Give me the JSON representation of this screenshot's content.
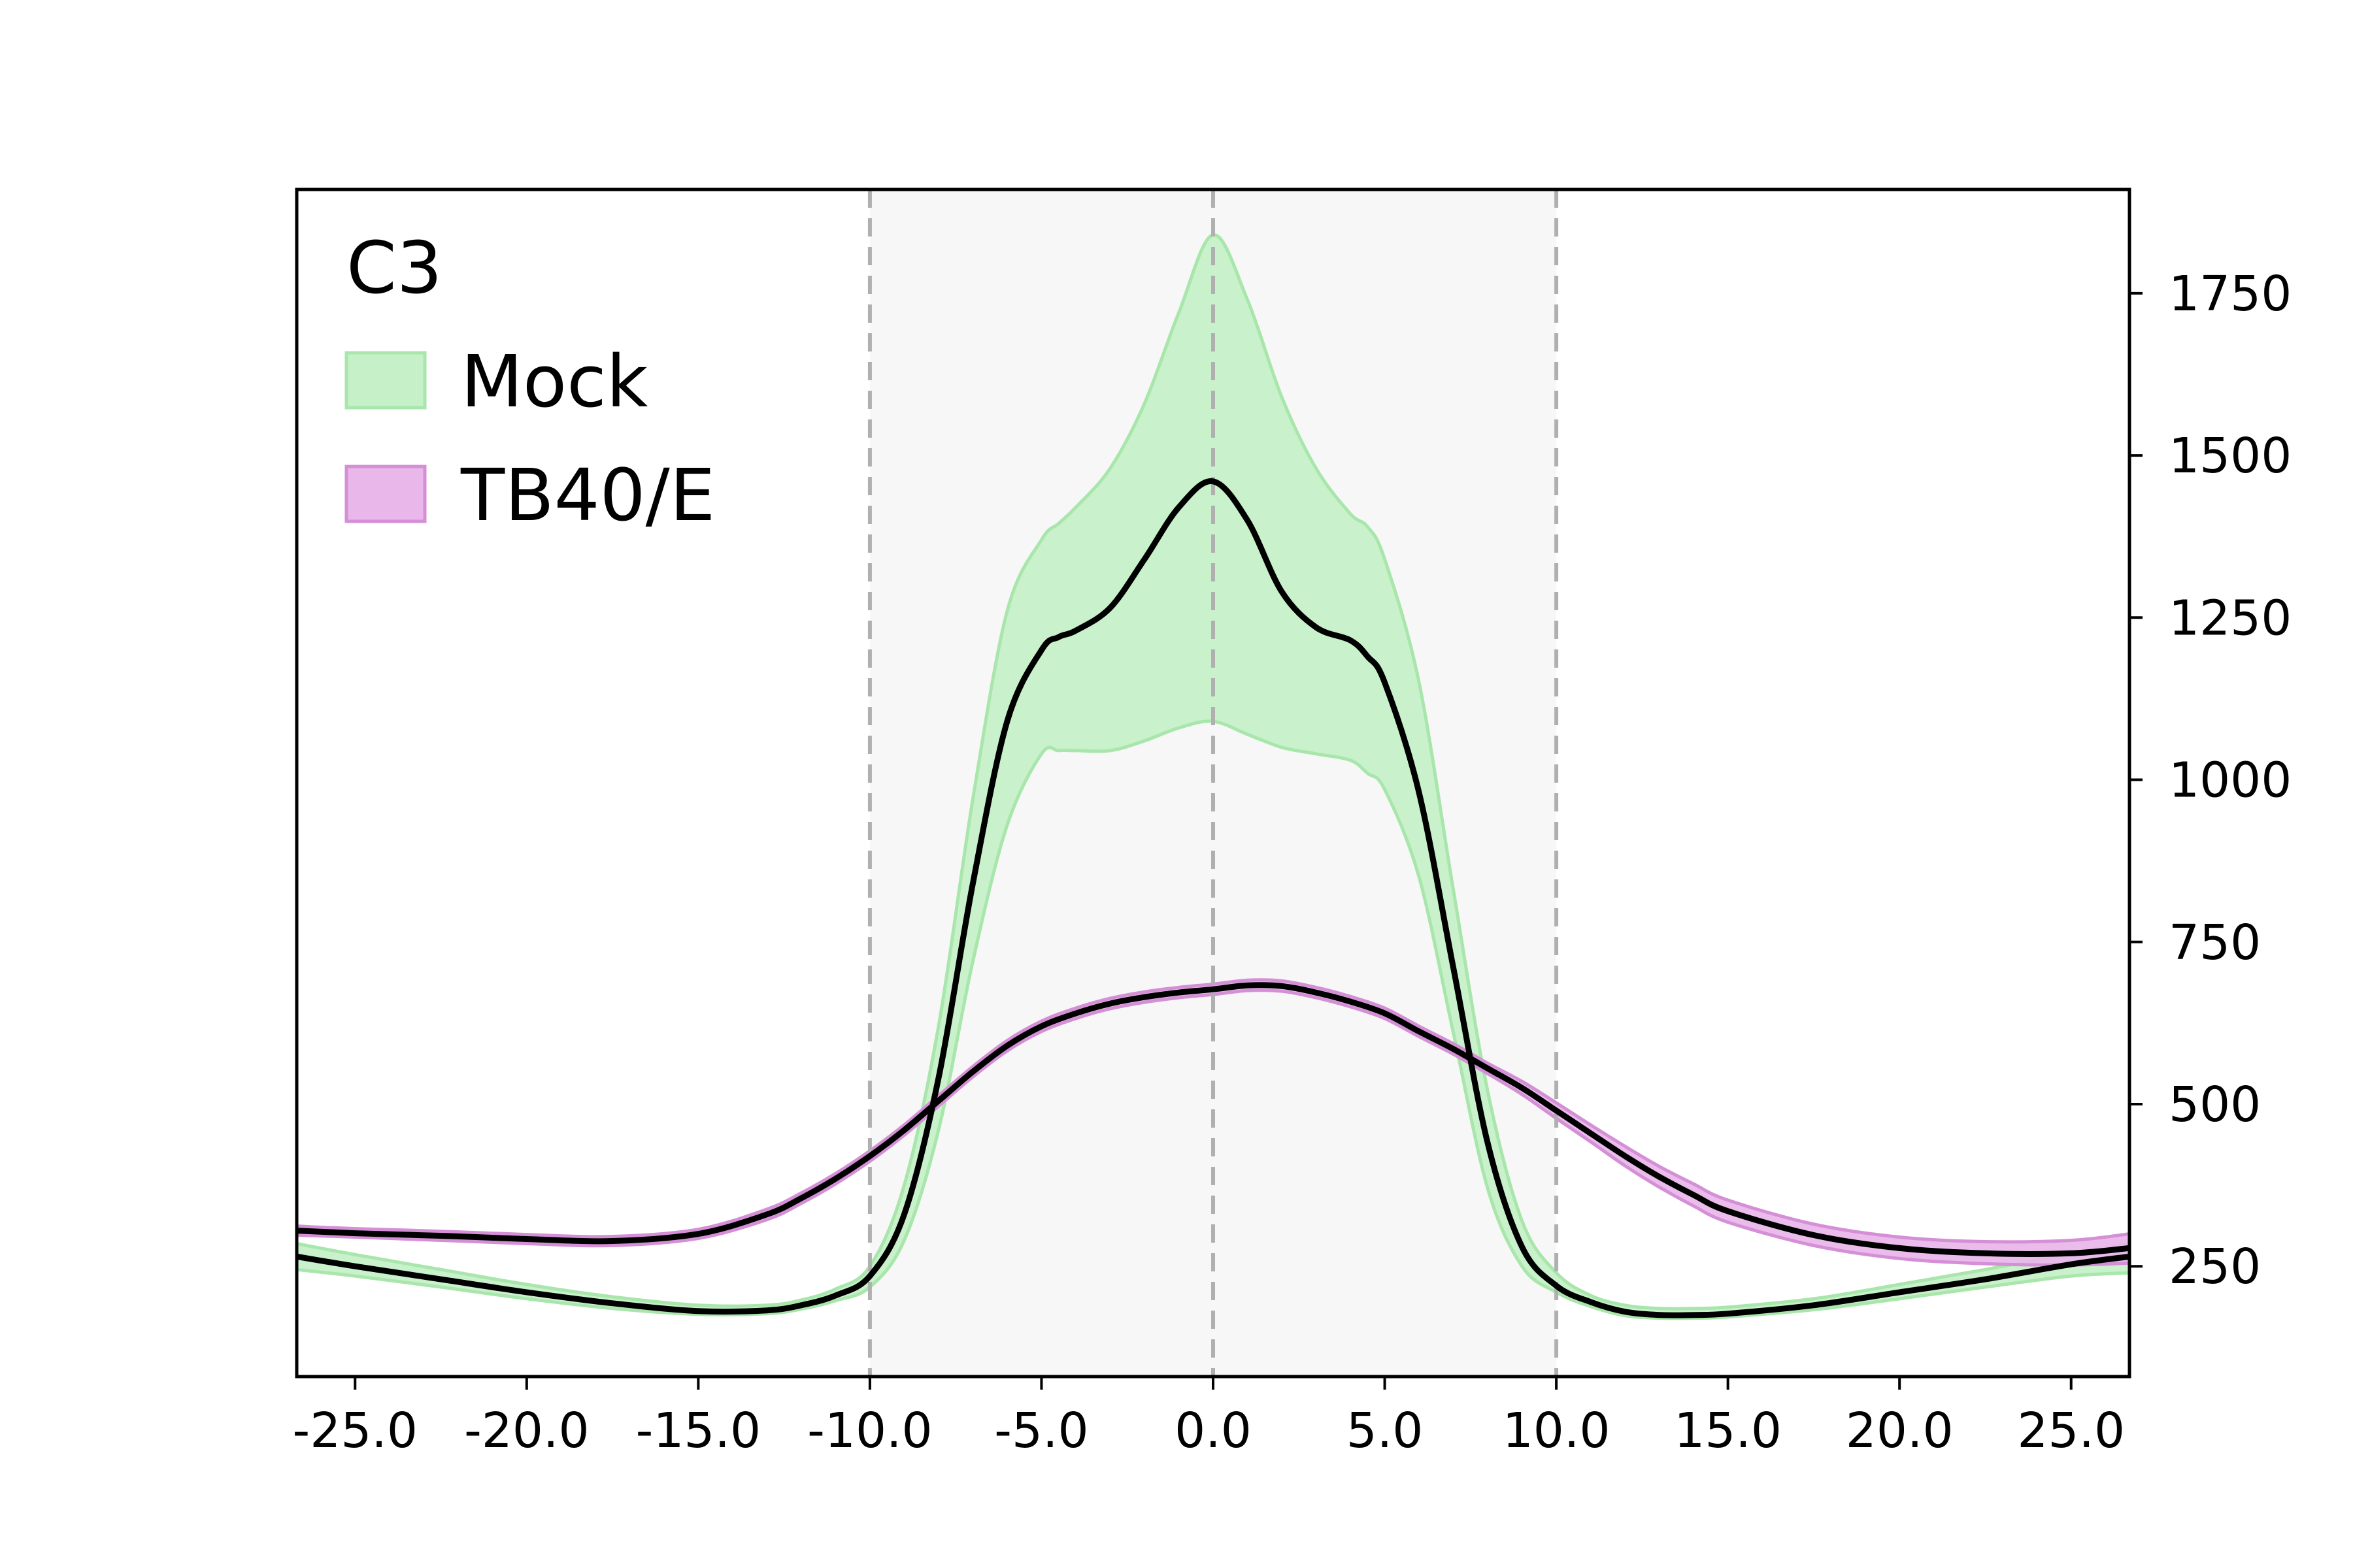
{
  "chart_data": {
    "type": "area",
    "title": "",
    "xlabel": "",
    "ylabel": "",
    "xlim": [
      -26.7,
      26.7
    ],
    "ylim": [
      80,
      1910
    ],
    "y_axis_side": "right",
    "x_ticks": [
      -25,
      -20,
      -15,
      -10,
      -5,
      0,
      5,
      10,
      15,
      20,
      25
    ],
    "x_tick_labels": [
      "-25.0",
      "-20.0",
      "-15.0",
      "-10.0",
      "-5.0",
      "0.0",
      "5.0",
      "10.0",
      "15.0",
      "20.0",
      "25.0"
    ],
    "y_ticks": [
      250,
      500,
      750,
      1000,
      1250,
      1500,
      1750
    ],
    "y_tick_labels": [
      "250",
      "500",
      "750",
      "1000",
      "1250",
      "1500",
      "1750"
    ],
    "vlines": [
      -10,
      0,
      10
    ],
    "shaded_region": [
      -10,
      10
    ],
    "legend_title": "C3",
    "legend_position": "top-left",
    "colors": {
      "shade": "#f7f7f7",
      "vline": "#b0b0b0",
      "mean_line": "#000000"
    },
    "series": [
      {
        "name": "Mock",
        "fill": "#c6f0c8",
        "edge": "#a8e6ab",
        "x": [
          -26.7,
          -25,
          -22.5,
          -20,
          -17.5,
          -15,
          -13,
          -12,
          -11,
          -10,
          -9,
          -8,
          -7,
          -6,
          -5,
          -4.5,
          -4,
          -3,
          -2,
          -1,
          0,
          1,
          2,
          3,
          4,
          4.5,
          5,
          6,
          7,
          8,
          9,
          10,
          11,
          12,
          13,
          14,
          15,
          17.5,
          20,
          22.5,
          25,
          26.7
        ],
        "mean": [
          265,
          250,
          230,
          210,
          193,
          181,
          182,
          190,
          205,
          235,
          330,
          540,
          840,
          1090,
          1200,
          1220,
          1230,
          1265,
          1340,
          1420,
          1460,
          1400,
          1290,
          1235,
          1215,
          1190,
          1150,
          980,
          710,
          440,
          280,
          220,
          195,
          180,
          175,
          175,
          177,
          190,
          210,
          230,
          253,
          265
        ],
        "lower": [
          245,
          235,
          218,
          200,
          185,
          176,
          177,
          184,
          197,
          218,
          290,
          460,
          720,
          930,
          1040,
          1045,
          1045,
          1045,
          1060,
          1080,
          1090,
          1070,
          1050,
          1040,
          1030,
          1010,
          985,
          850,
          610,
          370,
          250,
          210,
          188,
          174,
          170,
          170,
          172,
          183,
          200,
          218,
          235,
          240
        ],
        "upper": [
          285,
          268,
          245,
          222,
          203,
          190,
          190,
          198,
          215,
          250,
          375,
          620,
          970,
          1260,
          1370,
          1395,
          1420,
          1480,
          1580,
          1720,
          1840,
          1740,
          1590,
          1480,
          1410,
          1390,
          1340,
          1150,
          830,
          520,
          320,
          240,
          205,
          190,
          185,
          185,
          187,
          200,
          222,
          245,
          270,
          285
        ]
      },
      {
        "name": "TB40/E",
        "fill": "#e9b7ea",
        "edge": "#d48fd6",
        "x": [
          -26.7,
          -25,
          -22.5,
          -20,
          -17.5,
          -15,
          -13,
          -12,
          -11,
          -10,
          -9,
          -8,
          -7,
          -6,
          -5,
          -4,
          -3,
          -2,
          -1,
          0,
          1,
          2,
          3,
          4,
          5,
          6,
          7,
          8,
          9,
          10,
          11,
          12,
          13,
          14,
          15,
          17.5,
          20,
          22.5,
          25,
          26.7
        ],
        "mean": [
          305,
          301,
          297,
          292,
          289,
          300,
          330,
          355,
          385,
          420,
          460,
          505,
          550,
          590,
          620,
          640,
          655,
          665,
          672,
          677,
          683,
          682,
          672,
          658,
          640,
          612,
          585,
          555,
          525,
          490,
          455,
          420,
          388,
          360,
          335,
          298,
          278,
          270,
          270,
          278
        ],
        "lower": [
          298,
          295,
          290,
          285,
          282,
          293,
          322,
          347,
          377,
          412,
          452,
          497,
          542,
          582,
          612,
          632,
          647,
          657,
          664,
          669,
          675,
          674,
          664,
          650,
          632,
          604,
          577,
          547,
          515,
          478,
          442,
          405,
          372,
          343,
          318,
          282,
          262,
          254,
          252,
          255
        ],
        "upper": [
          312,
          308,
          304,
          299,
          296,
          307,
          338,
          363,
          393,
          428,
          468,
          513,
          558,
          598,
          628,
          648,
          663,
          673,
          680,
          685,
          691,
          690,
          680,
          666,
          648,
          620,
          593,
          563,
          535,
          502,
          468,
          435,
          404,
          377,
          352,
          315,
          295,
          288,
          290,
          300
        ]
      }
    ]
  }
}
